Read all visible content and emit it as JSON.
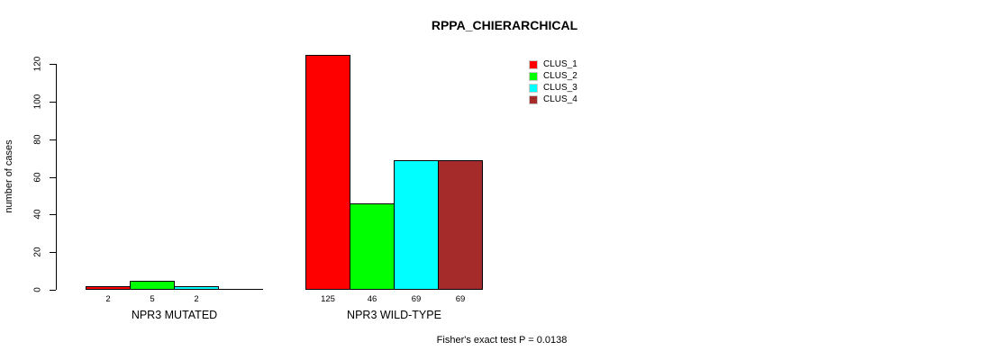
{
  "chart_data": {
    "type": "bar",
    "title": "RPPA_CHIERARCHICAL",
    "xlabel": "",
    "ylabel": "number of cases",
    "ylim": [
      0,
      120
    ],
    "yticks": [
      0,
      20,
      40,
      60,
      80,
      100,
      120
    ],
    "grid": false,
    "legend_position": "top-right",
    "categories": [
      "NPR3 MUTATED",
      "NPR3 WILD-TYPE"
    ],
    "series": [
      {
        "name": "CLUS_1",
        "color": "#ff0000",
        "values": [
          2,
          125
        ]
      },
      {
        "name": "CLUS_2",
        "color": "#00ff00",
        "values": [
          5,
          46
        ]
      },
      {
        "name": "CLUS_3",
        "color": "#00ffff",
        "values": [
          2,
          69
        ]
      },
      {
        "name": "CLUS_4",
        "color": "#a52a2a",
        "values": [
          0,
          69
        ]
      }
    ],
    "bar_value_labels": [
      [
        "2",
        "5",
        "2",
        ""
      ],
      [
        "125",
        "46",
        "69",
        "69"
      ]
    ],
    "annotation": "Fisher's exact test P = 0.0138"
  }
}
